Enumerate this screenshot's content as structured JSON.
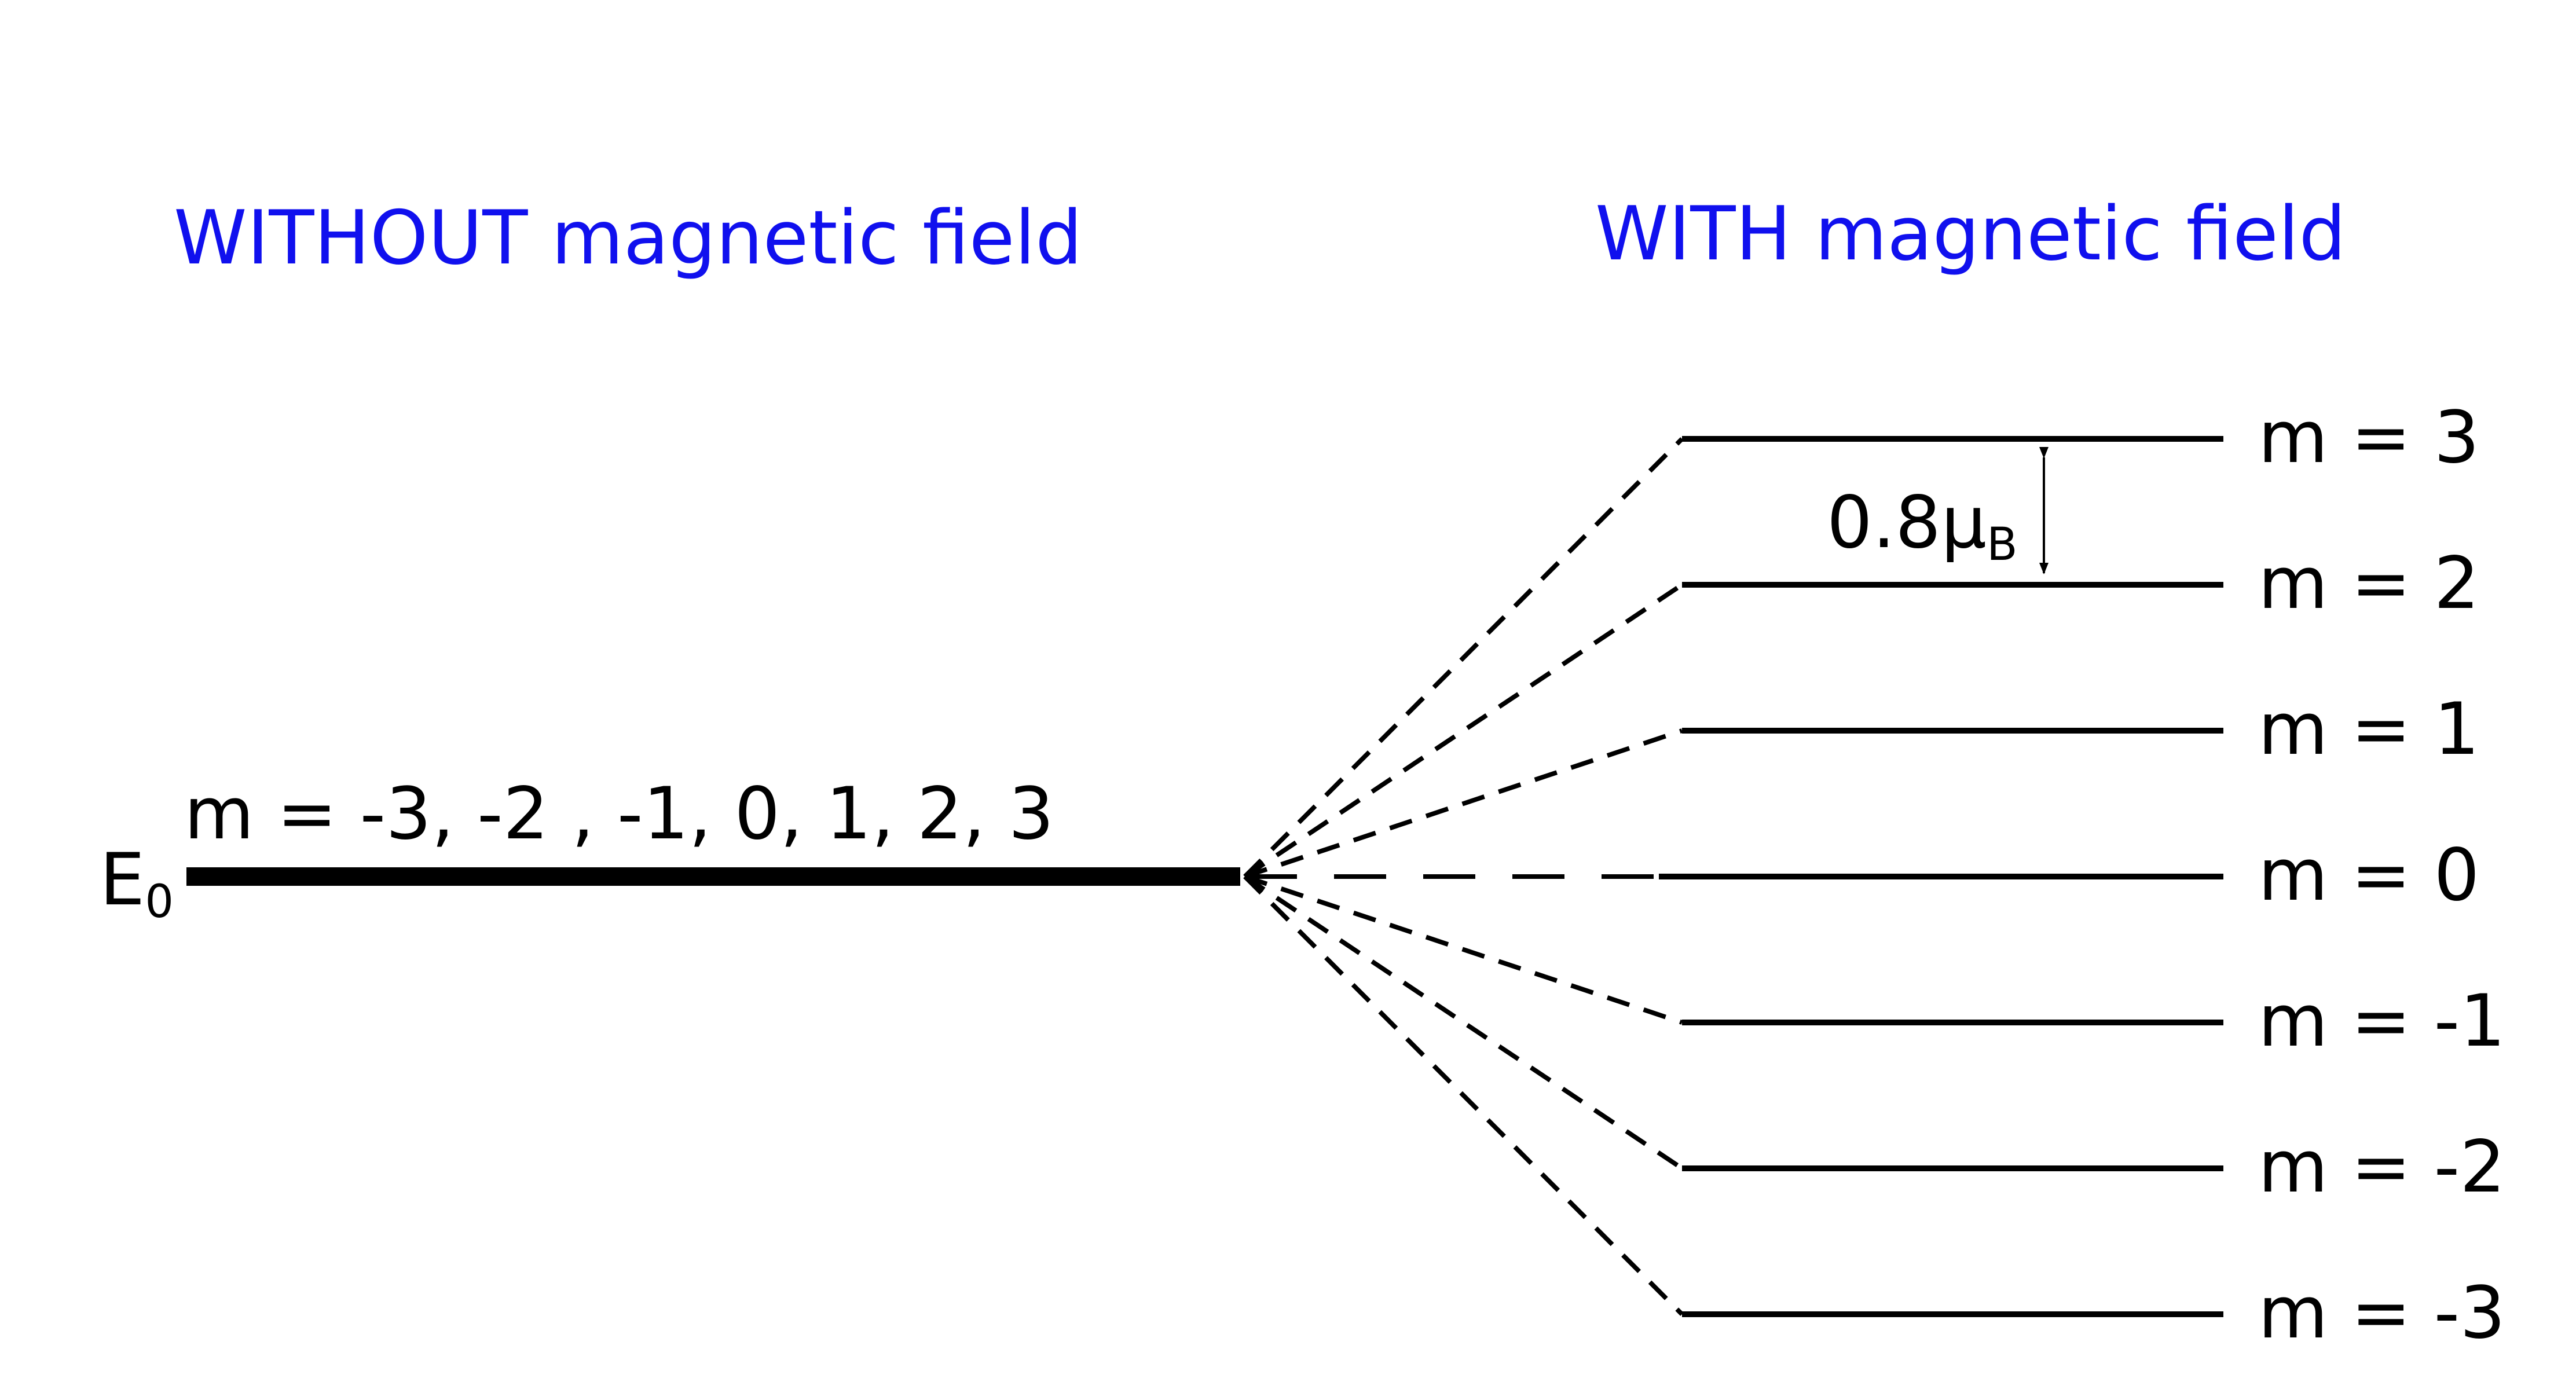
{
  "headings": {
    "without": "WITHOUT magnetic field",
    "with": "WITH magnetic field"
  },
  "base_level": {
    "symbol": "E",
    "subscript": "0",
    "m_values": "m = -3, -2 , -1, 0, 1, 2, 3"
  },
  "spacing_label": {
    "value": "0.8μ",
    "subscript": "B"
  },
  "levels": [
    {
      "m": 3,
      "label": "m = 3"
    },
    {
      "m": 2,
      "label": "m = 2"
    },
    {
      "m": 1,
      "label": "m = 1"
    },
    {
      "m": 0,
      "label": "m = 0"
    },
    {
      "m": -1,
      "label": "m = -1"
    },
    {
      "m": -2,
      "label": "m = -2"
    },
    {
      "m": -3,
      "label": "m = -3"
    }
  ]
}
